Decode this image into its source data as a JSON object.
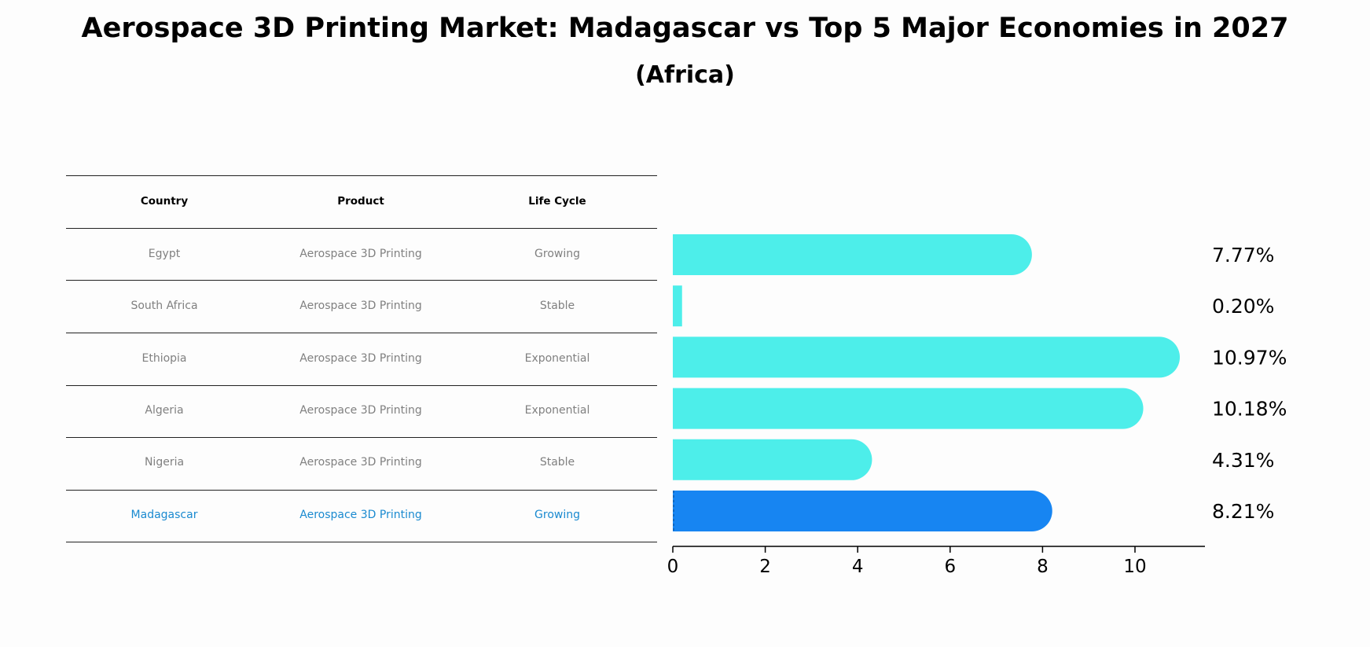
{
  "title": "Aerospace 3D Printing Market: Madagascar vs Top 5 Major Economies in 2027",
  "subtitle": "(Africa)",
  "table": {
    "headers": [
      "Country",
      "Product",
      "Life Cycle"
    ],
    "rows": [
      {
        "country": "Egypt",
        "product": "Aerospace 3D Printing",
        "life_cycle": "Growing"
      },
      {
        "country": "South Africa",
        "product": "Aerospace 3D Printing",
        "life_cycle": "Stable"
      },
      {
        "country": "Ethiopia",
        "product": "Aerospace 3D Printing",
        "life_cycle": "Exponential"
      },
      {
        "country": "Algeria",
        "product": "Aerospace 3D Printing",
        "life_cycle": "Exponential"
      },
      {
        "country": "Nigeria",
        "product": "Aerospace 3D Printing",
        "life_cycle": "Stable"
      },
      {
        "country": "Madagascar",
        "product": "Aerospace 3D Printing",
        "life_cycle": "Growing"
      }
    ],
    "highlight_color": "#1a8ad0",
    "text_color": "#808080"
  },
  "chart_data": {
    "type": "bar",
    "orientation": "horizontal",
    "categories": [
      "Egypt",
      "South Africa",
      "Ethiopia",
      "Algeria",
      "Nigeria",
      "Madagascar"
    ],
    "values": [
      7.77,
      0.2,
      10.97,
      10.18,
      4.31,
      8.21
    ],
    "value_labels": [
      "7.77%",
      "0.20%",
      "10.97%",
      "10.18%",
      "4.31%",
      "8.21%"
    ],
    "highlight": "Madagascar",
    "colors": {
      "default": "#4deeea",
      "highlight": "#1785f2"
    },
    "xticks": [
      0,
      2,
      4,
      6,
      8,
      10
    ],
    "xlim": [
      0,
      11.5
    ],
    "grid": false
  }
}
